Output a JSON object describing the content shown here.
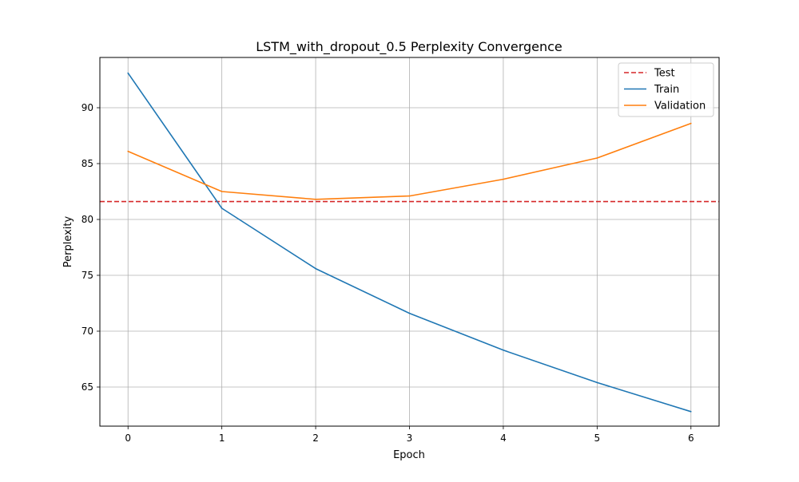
{
  "chart_data": {
    "type": "line",
    "title": "LSTM_with_dropout_0.5 Perplexity Convergence",
    "xlabel": "Epoch",
    "ylabel": "Perplexity",
    "xlim": [
      -0.3,
      6.3
    ],
    "ylim": [
      61.5,
      94.5
    ],
    "x": [
      0,
      1,
      2,
      3,
      4,
      5,
      6
    ],
    "x_ticks": [
      0,
      1,
      2,
      3,
      4,
      5,
      6
    ],
    "y_ticks": [
      65,
      70,
      75,
      80,
      85,
      90
    ],
    "grid": true,
    "legend_position": "top-right",
    "series": [
      {
        "name": "Train",
        "color": "#1f77b4",
        "style": "solid",
        "values": [
          93.1,
          81.0,
          75.6,
          71.6,
          68.3,
          65.4,
          62.8
        ]
      },
      {
        "name": "Validation",
        "color": "#ff7f0e",
        "style": "solid",
        "values": [
          86.1,
          82.5,
          81.8,
          82.1,
          83.6,
          85.5,
          88.6
        ]
      }
    ],
    "reference_lines": [
      {
        "name": "Test",
        "color": "#d62728",
        "style": "dashed",
        "orientation": "horizontal",
        "value": 81.6
      }
    ],
    "legend_order": [
      "Test",
      "Train",
      "Validation"
    ]
  }
}
